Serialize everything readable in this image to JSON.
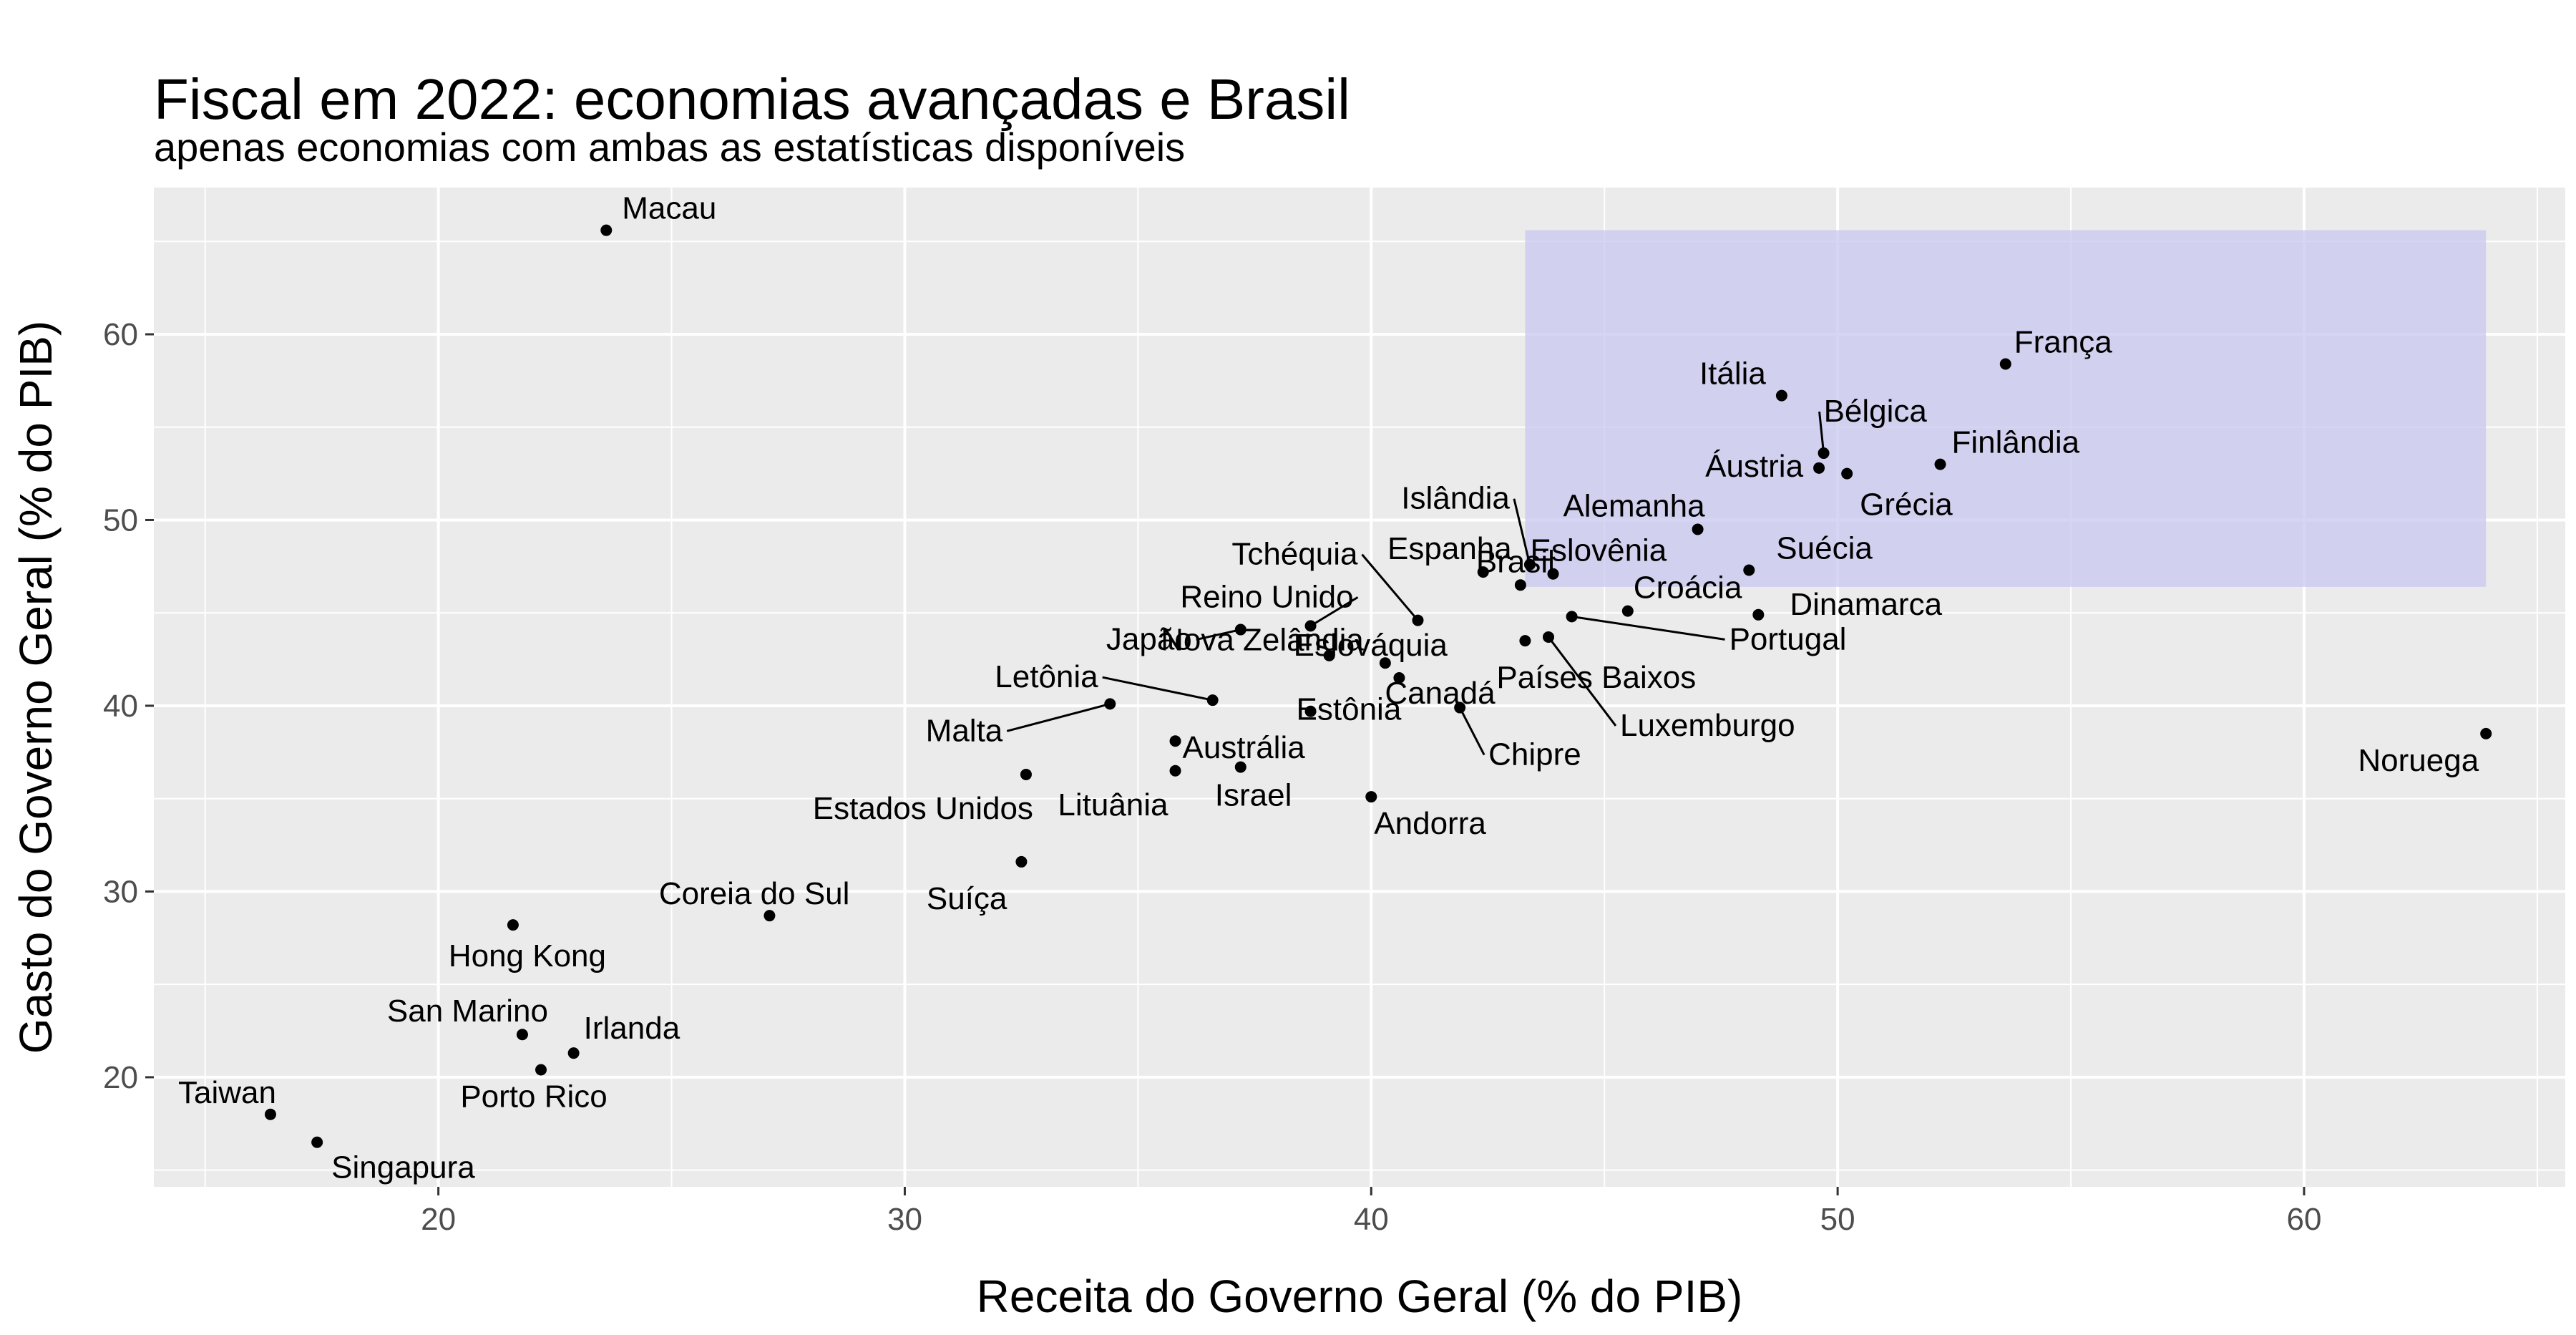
{
  "chart_data": {
    "type": "scatter",
    "title": "Fiscal em 2022: economias avançadas e Brasil",
    "subtitle": "apenas economias com ambas as estatísticas disponíveis",
    "xlabel": "Receita do Governo Geral (% do PIB)",
    "ylabel": "Gasto do Governo Geral (% do PIB)",
    "xlim": [
      13.9,
      65.6
    ],
    "ylim": [
      14.1,
      67.9
    ],
    "x_ticks": [
      20,
      30,
      40,
      50,
      60
    ],
    "y_ticks": [
      20,
      30,
      40,
      50,
      60
    ],
    "grid": true,
    "background": "#ebebeb",
    "point_color": "#000000",
    "highlight_region": {
      "x": [
        43.3,
        63.9
      ],
      "y": [
        46.4,
        65.6
      ],
      "color": "#c8c8f0"
    },
    "points": [
      {
        "name": "Macau",
        "x": 23.6,
        "y": 65.6
      },
      {
        "name": "França",
        "x": 53.6,
        "y": 58.4
      },
      {
        "name": "Itália",
        "x": 48.8,
        "y": 56.7
      },
      {
        "name": "Bélgica",
        "x": 49.7,
        "y": 53.6
      },
      {
        "name": "Áustria",
        "x": 49.6,
        "y": 52.8
      },
      {
        "name": "Grécia",
        "x": 50.2,
        "y": 52.5
      },
      {
        "name": "Finlândia",
        "x": 52.2,
        "y": 53.0
      },
      {
        "name": "Alemanha",
        "x": 47.0,
        "y": 49.5
      },
      {
        "name": "Islândia",
        "x": 43.4,
        "y": 47.6
      },
      {
        "name": "Eslovênia",
        "x": 43.9,
        "y": 47.1
      },
      {
        "name": "Espanha",
        "x": 42.4,
        "y": 47.2
      },
      {
        "name": "Suécia",
        "x": 48.1,
        "y": 47.3
      },
      {
        "name": "Tchéquia",
        "x": 41.0,
        "y": 44.6
      },
      {
        "name": "Brasil",
        "x": 43.2,
        "y": 46.5
      },
      {
        "name": "Croácia",
        "x": 45.5,
        "y": 45.1
      },
      {
        "name": "Dinamarca",
        "x": 48.3,
        "y": 44.9
      },
      {
        "name": "Portugal",
        "x": 44.3,
        "y": 44.8
      },
      {
        "name": "Países Baixos",
        "x": 43.3,
        "y": 43.5
      },
      {
        "name": "Luxemburgo",
        "x": 43.8,
        "y": 43.7
      },
      {
        "name": "Reino Unido",
        "x": 38.7,
        "y": 44.3
      },
      {
        "name": "Japão",
        "x": 37.2,
        "y": 44.1
      },
      {
        "name": "Eslováquia",
        "x": 39.1,
        "y": 42.7
      },
      {
        "name": "Nova Zelândia",
        "x": 40.3,
        "y": 42.3
      },
      {
        "name": "Canadá",
        "x": 40.6,
        "y": 41.5
      },
      {
        "name": "Chipre",
        "x": 41.9,
        "y": 39.9
      },
      {
        "name": "Letônia",
        "x": 36.6,
        "y": 40.3
      },
      {
        "name": "Malta",
        "x": 34.4,
        "y": 40.1
      },
      {
        "name": "Estônia",
        "x": 38.7,
        "y": 39.7
      },
      {
        "name": "Austrália",
        "x": 35.8,
        "y": 38.1
      },
      {
        "name": "Lituânia",
        "x": 35.8,
        "y": 36.5
      },
      {
        "name": "Israel",
        "x": 37.2,
        "y": 36.7
      },
      {
        "name": "Estados Unidos",
        "x": 32.6,
        "y": 36.3
      },
      {
        "name": "Andorra",
        "x": 40.0,
        "y": 35.1
      },
      {
        "name": "Noruega",
        "x": 63.9,
        "y": 38.5
      },
      {
        "name": "Suíça",
        "x": 32.5,
        "y": 31.6
      },
      {
        "name": "Coreia do Sul",
        "x": 27.1,
        "y": 28.7
      },
      {
        "name": "Hong Kong",
        "x": 21.6,
        "y": 28.2
      },
      {
        "name": "San Marino",
        "x": 21.8,
        "y": 22.3
      },
      {
        "name": "Irlanda",
        "x": 22.9,
        "y": 21.3
      },
      {
        "name": "Porto Rico",
        "x": 22.2,
        "y": 20.4
      },
      {
        "name": "Taiwan",
        "x": 16.4,
        "y": 18.0
      },
      {
        "name": "Singapura",
        "x": 17.4,
        "y": 16.5
      }
    ]
  }
}
